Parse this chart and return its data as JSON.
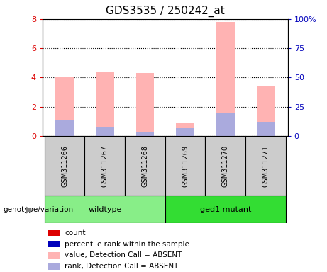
{
  "title": "GDS3535 / 250242_at",
  "samples": [
    "GSM311266",
    "GSM311267",
    "GSM311268",
    "GSM311269",
    "GSM311270",
    "GSM311271"
  ],
  "pink_bar_heights": [
    4.05,
    4.35,
    4.3,
    0.9,
    7.8,
    3.4
  ],
  "blue_bar_heights": [
    1.1,
    0.65,
    0.25,
    0.55,
    1.6,
    0.95
  ],
  "ylim_left": [
    0,
    8
  ],
  "ylim_right": [
    0,
    100
  ],
  "yticks_left": [
    0,
    2,
    4,
    6,
    8
  ],
  "yticks_right": [
    0,
    25,
    50,
    75,
    100
  ],
  "ytick_labels_right": [
    "0",
    "25",
    "50",
    "75",
    "100%"
  ],
  "ytick_labels_left": [
    "0",
    "2",
    "4",
    "6",
    "8"
  ],
  "pink_color": "#FFB3B3",
  "light_blue_color": "#AAAADD",
  "red_color": "#DD0000",
  "dark_blue_color": "#0000BB",
  "wildtype_color": "#88EE88",
  "mutant_color": "#33DD33",
  "group_bg_color": "#CCCCCC",
  "legend_items": [
    {
      "label": "count",
      "color": "#DD0000"
    },
    {
      "label": "percentile rank within the sample",
      "color": "#0000BB"
    },
    {
      "label": "value, Detection Call = ABSENT",
      "color": "#FFB3B3"
    },
    {
      "label": "rank, Detection Call = ABSENT",
      "color": "#AAAADD"
    }
  ],
  "wildtype_label": "wildtype",
  "mutant_label": "ged1 mutant",
  "genotype_label": "genotype/variation"
}
